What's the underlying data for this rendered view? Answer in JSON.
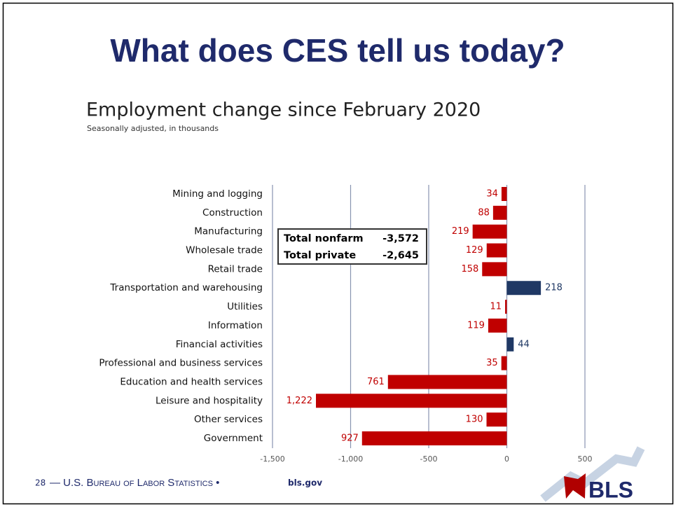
{
  "slide_title": "What does CES tell us today?",
  "chart_data": {
    "type": "hbar",
    "title": "Employment change since February 2020",
    "subtitle": "Seasonally adjusted, in thousands",
    "categories": [
      "Mining and logging",
      "Construction",
      "Manufacturing",
      "Wholesale trade",
      "Retail trade",
      "Transportation and warehousing",
      "Utilities",
      "Information",
      "Financial activities",
      "Professional and business services",
      "Education and health services",
      "Leisure and hospitality",
      "Other services",
      "Government"
    ],
    "values": [
      -34,
      -88,
      -219,
      -129,
      -158,
      218,
      -11,
      -119,
      44,
      -35,
      -761,
      -1222,
      -130,
      -927
    ],
    "value_labels": [
      "34",
      "88",
      "219",
      "129",
      "158",
      "218",
      "11",
      "119",
      "44",
      "35",
      "761",
      "1,222",
      "130",
      "927"
    ],
    "colors": [
      "#c00000",
      "#c00000",
      "#c00000",
      "#c00000",
      "#c00000",
      "#1f3864",
      "#c00000",
      "#c00000",
      "#1f3864",
      "#c00000",
      "#c00000",
      "#c00000",
      "#c00000",
      "#c00000"
    ],
    "xlim": [
      -1500,
      500
    ],
    "xticks": [
      {
        "value": -1500,
        "label": "-1,500"
      },
      {
        "value": -1000,
        "label": "-1,000"
      },
      -500,
      0,
      500
    ],
    "grid": true,
    "annotations": [
      [
        "Total nonfarm",
        "-3,572"
      ],
      [
        "Total private",
        "-2,645"
      ]
    ]
  },
  "footer": {
    "page": "28",
    "agency": "— U.S. Bureau of Labor Statistics •",
    "site": "bls.gov"
  },
  "logo": "BLS"
}
